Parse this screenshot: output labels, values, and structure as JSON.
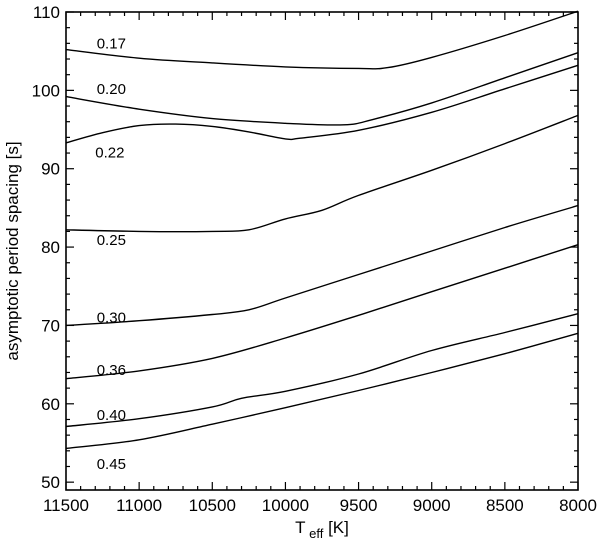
{
  "chart_data": {
    "type": "line",
    "title": "",
    "xlabel": {
      "main": "T",
      "sub": "eff",
      "unit": " [K]"
    },
    "ylabel": "asymptotic period spacing [s]",
    "xlim": [
      11500,
      8000
    ],
    "ylim": [
      49,
      110
    ],
    "x_reversed": true,
    "xticks": [
      11500,
      11000,
      10500,
      10000,
      9500,
      9000,
      8500,
      8000
    ],
    "yticks": [
      50,
      60,
      70,
      80,
      90,
      100,
      110
    ],
    "grid": false,
    "legend": "none",
    "series": [
      {
        "name": "0.17",
        "points": [
          [
            11500,
            105.2
          ],
          [
            11000,
            104.1
          ],
          [
            10500,
            103.5
          ],
          [
            10000,
            103.0
          ],
          [
            9500,
            102.8
          ],
          [
            9300,
            102.9
          ],
          [
            9000,
            104.2
          ],
          [
            8500,
            107.0
          ],
          [
            8000,
            110.1
          ]
        ]
      },
      {
        "name": "0.20",
        "points": [
          [
            11500,
            99.2
          ],
          [
            11000,
            97.6
          ],
          [
            10500,
            96.4
          ],
          [
            10000,
            95.8
          ],
          [
            9600,
            95.6
          ],
          [
            9400,
            96.3
          ],
          [
            9000,
            98.4
          ],
          [
            8500,
            101.6
          ],
          [
            8000,
            104.8
          ]
        ]
      },
      {
        "name": "0.22",
        "points": [
          [
            11500,
            93.3
          ],
          [
            11250,
            94.6
          ],
          [
            11000,
            95.5
          ],
          [
            10750,
            95.7
          ],
          [
            10500,
            95.4
          ],
          [
            10250,
            94.7
          ],
          [
            10000,
            93.8
          ],
          [
            9900,
            93.9
          ],
          [
            9500,
            94.9
          ],
          [
            9000,
            97.2
          ],
          [
            8500,
            100.2
          ],
          [
            8000,
            103.2
          ]
        ]
      },
      {
        "name": "0.25",
        "points": [
          [
            11500,
            82.2
          ],
          [
            11000,
            82.0
          ],
          [
            10500,
            82.0
          ],
          [
            10250,
            82.2
          ],
          [
            10000,
            83.6
          ],
          [
            9750,
            84.7
          ],
          [
            9500,
            86.6
          ],
          [
            9000,
            89.8
          ],
          [
            8500,
            93.2
          ],
          [
            8000,
            96.8
          ]
        ]
      },
      {
        "name": "0.30",
        "points": [
          [
            11500,
            70.0
          ],
          [
            11000,
            70.6
          ],
          [
            10500,
            71.4
          ],
          [
            10250,
            72.0
          ],
          [
            10000,
            73.5
          ],
          [
            9500,
            76.5
          ],
          [
            9000,
            79.5
          ],
          [
            8500,
            82.5
          ],
          [
            8000,
            85.3
          ]
        ]
      },
      {
        "name": "0.36",
        "points": [
          [
            11500,
            63.2
          ],
          [
            11000,
            64.2
          ],
          [
            10500,
            65.8
          ],
          [
            10000,
            68.4
          ],
          [
            9500,
            71.3
          ],
          [
            9000,
            74.3
          ],
          [
            8500,
            77.3
          ],
          [
            8000,
            80.3
          ]
        ]
      },
      {
        "name": "0.40",
        "points": [
          [
            11500,
            57.1
          ],
          [
            11000,
            58.1
          ],
          [
            10500,
            59.6
          ],
          [
            10300,
            60.7
          ],
          [
            10000,
            61.6
          ],
          [
            9500,
            63.8
          ],
          [
            9000,
            66.8
          ],
          [
            8500,
            69.1
          ],
          [
            8000,
            71.5
          ]
        ]
      },
      {
        "name": "0.45",
        "points": [
          [
            11500,
            54.3
          ],
          [
            11000,
            55.4
          ],
          [
            10500,
            57.4
          ],
          [
            10000,
            59.5
          ],
          [
            9500,
            61.7
          ],
          [
            9000,
            64.0
          ],
          [
            8500,
            66.4
          ],
          [
            8000,
            69.0
          ]
        ]
      }
    ],
    "curve_labels": [
      {
        "text": "0.17",
        "x": 11290,
        "y": 106.0
      },
      {
        "text": "0.20",
        "x": 11290,
        "y": 100.2
      },
      {
        "text": "0.22",
        "x": 11300,
        "y": 92.1
      },
      {
        "text": "0.25",
        "x": 11290,
        "y": 80.9
      },
      {
        "text": "0.30",
        "x": 11290,
        "y": 71.0
      },
      {
        "text": "0.36",
        "x": 11290,
        "y": 64.3
      },
      {
        "text": "0.40",
        "x": 11290,
        "y": 58.6
      },
      {
        "text": "0.45",
        "x": 11290,
        "y": 52.3
      }
    ]
  }
}
